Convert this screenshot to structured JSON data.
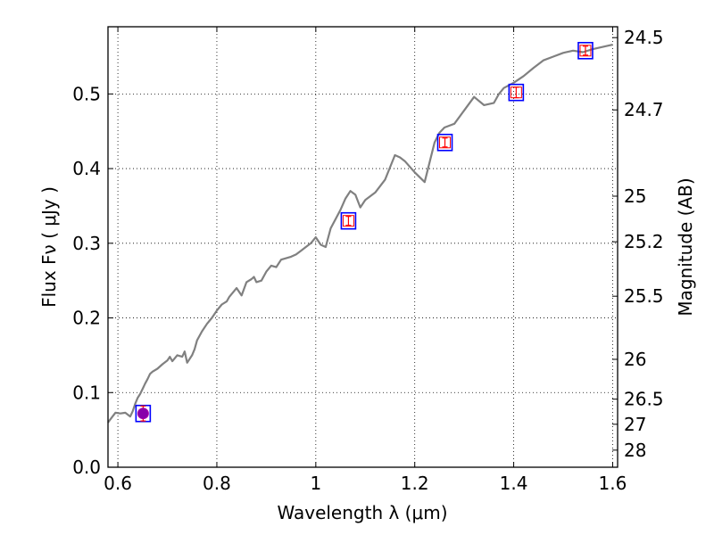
{
  "chart_data": {
    "type": "line",
    "xlabel": "Wavelength  λ (μm)",
    "ylabel": "Flux  Fν  ( μJy )",
    "ylabel_right": "Magnitude (AB)",
    "xlim": [
      0.58,
      1.61
    ],
    "ylim": [
      0.0,
      0.59
    ],
    "grid": true,
    "x_ticks": [
      {
        "value": 0.6,
        "label": "0.6"
      },
      {
        "value": 0.8,
        "label": "0.8"
      },
      {
        "value": 1.0,
        "label": "1"
      },
      {
        "value": 1.2,
        "label": "1.2"
      },
      {
        "value": 1.4,
        "label": "1.4"
      },
      {
        "value": 1.6,
        "label": "1.6"
      }
    ],
    "y_ticks": [
      {
        "value": 0.0,
        "label": "0.0"
      },
      {
        "value": 0.1,
        "label": "0.1"
      },
      {
        "value": 0.2,
        "label": "0.2"
      },
      {
        "value": 0.3,
        "label": "0.3"
      },
      {
        "value": 0.4,
        "label": "0.4"
      },
      {
        "value": 0.5,
        "label": "0.5"
      }
    ],
    "mag_ticks": [
      {
        "mag": 24.5,
        "label": "24.5"
      },
      {
        "mag": 24.7,
        "label": "24.7"
      },
      {
        "mag": 25.0,
        "label": "25"
      },
      {
        "mag": 25.2,
        "label": "25.2"
      },
      {
        "mag": 25.5,
        "label": "25.5"
      },
      {
        "mag": 26.0,
        "label": "26"
      },
      {
        "mag": 26.5,
        "label": "26.5"
      },
      {
        "mag": 27.0,
        "label": "27"
      },
      {
        "mag": 28.0,
        "label": "28"
      }
    ],
    "series": [
      {
        "kind": "model",
        "color": "#808080",
        "x": [
          0.58,
          0.595,
          0.605,
          0.615,
          0.625,
          0.63,
          0.635,
          0.64,
          0.645,
          0.65,
          0.655,
          0.66,
          0.665,
          0.67,
          0.68,
          0.69,
          0.7,
          0.705,
          0.71,
          0.72,
          0.73,
          0.735,
          0.74,
          0.75,
          0.755,
          0.76,
          0.77,
          0.78,
          0.79,
          0.8,
          0.81,
          0.82,
          0.825,
          0.83,
          0.84,
          0.85,
          0.86,
          0.87,
          0.875,
          0.88,
          0.89,
          0.9,
          0.91,
          0.92,
          0.93,
          0.94,
          0.95,
          0.96,
          0.97,
          0.98,
          0.99,
          1.0,
          1.01,
          1.02,
          1.03,
          1.05,
          1.06,
          1.07,
          1.08,
          1.09,
          1.1,
          1.12,
          1.14,
          1.16,
          1.17,
          1.18,
          1.2,
          1.22,
          1.24,
          1.25,
          1.26,
          1.28,
          1.3,
          1.32,
          1.34,
          1.36,
          1.37,
          1.38,
          1.4,
          1.42,
          1.44,
          1.46,
          1.48,
          1.5,
          1.52,
          1.54,
          1.56,
          1.58,
          1.6
        ],
        "y": [
          0.06,
          0.073,
          0.072,
          0.073,
          0.068,
          0.075,
          0.085,
          0.093,
          0.098,
          0.105,
          0.112,
          0.118,
          0.125,
          0.128,
          0.132,
          0.138,
          0.143,
          0.148,
          0.142,
          0.15,
          0.148,
          0.155,
          0.14,
          0.15,
          0.158,
          0.17,
          0.182,
          0.192,
          0.2,
          0.21,
          0.218,
          0.222,
          0.228,
          0.232,
          0.24,
          0.23,
          0.248,
          0.252,
          0.255,
          0.248,
          0.25,
          0.262,
          0.27,
          0.268,
          0.278,
          0.28,
          0.282,
          0.285,
          0.29,
          0.295,
          0.3,
          0.308,
          0.298,
          0.295,
          0.32,
          0.345,
          0.36,
          0.37,
          0.365,
          0.348,
          0.358,
          0.368,
          0.385,
          0.418,
          0.415,
          0.41,
          0.395,
          0.382,
          0.435,
          0.448,
          0.455,
          0.46,
          0.478,
          0.496,
          0.485,
          0.488,
          0.5,
          0.508,
          0.515,
          0.524,
          0.535,
          0.545,
          0.55,
          0.555,
          0.558,
          0.556,
          0.56,
          0.563,
          0.566
        ]
      },
      {
        "kind": "model_photometry",
        "color": "#0000ff",
        "x": [
          0.651,
          1.066,
          1.261,
          1.405,
          1.545
        ],
        "y": [
          0.072,
          0.33,
          0.435,
          0.502,
          0.558
        ]
      },
      {
        "kind": "observed_photometry",
        "color": "#ff0000",
        "x": [
          0.651,
          1.066,
          1.261,
          1.405,
          1.545
        ],
        "y": [
          0.072,
          0.33,
          0.435,
          0.502,
          0.558
        ],
        "yerr": [
          0.01,
          0.006,
          0.006,
          0.007,
          0.006
        ],
        "marker_fill": [
          "#8800aa",
          "none",
          "none",
          "none",
          "none"
        ]
      }
    ]
  }
}
